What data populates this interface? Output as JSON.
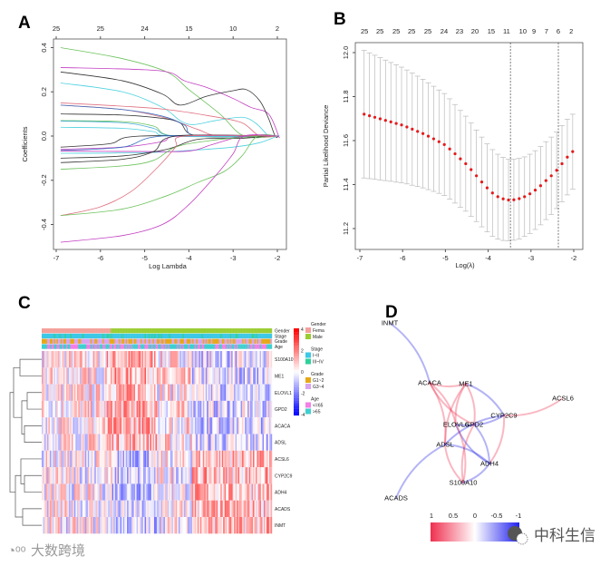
{
  "panel_letters": {
    "a": "A",
    "b": "B",
    "c": "C",
    "d": "D"
  },
  "chart_data": [
    {
      "panel": "A",
      "type": "line",
      "xlabel": "Log Lambda",
      "ylabel": "Coefficients",
      "xlim": [
        -7,
        -2
      ],
      "ylim": [
        -0.5,
        0.42
      ],
      "xticks": [
        "-7",
        "-6",
        "-5",
        "-4",
        "-3",
        "-2"
      ],
      "xtick_values": [
        -7,
        -6,
        -5,
        -4,
        -3,
        -2
      ],
      "yticks": [
        "-0.4",
        "-0.2",
        "0.0",
        "0.2",
        "0.4"
      ],
      "ytick_values": [
        -0.4,
        -0.2,
        0,
        0.2,
        0.4
      ],
      "top_axis": {
        "labels": [
          "25",
          "25",
          "24",
          "15",
          "10",
          "2"
        ],
        "at": [
          -7,
          -6,
          -5,
          -4,
          -3,
          -2
        ]
      },
      "series": [
        {
          "color": "#6cc35c",
          "points": [
            [
              -6.9,
              0.4
            ],
            [
              -5.5,
              0.35
            ],
            [
              -4.5,
              0.29
            ],
            [
              -4.0,
              0.21
            ],
            [
              -3.3,
              0.1
            ],
            [
              -2.75,
              0
            ]
          ]
        },
        {
          "color": "#c23dc2",
          "points": [
            [
              -6.9,
              0.31
            ],
            [
              -5,
              0.3
            ],
            [
              -4.4,
              0.285
            ],
            [
              -4.1,
              0.25
            ],
            [
              -3.6,
              0.22
            ],
            [
              -3,
              0.17
            ],
            [
              -2.6,
              0.13
            ],
            [
              -2.2,
              0.1
            ],
            [
              -1.97,
              0
            ]
          ]
        },
        {
          "color": "#333333",
          "points": [
            [
              -6.9,
              0.29
            ],
            [
              -5.5,
              0.25
            ],
            [
              -4.6,
              0.19
            ],
            [
              -4.2,
              0.14
            ],
            [
              -3.6,
              0.18
            ],
            [
              -3.0,
              0.205
            ],
            [
              -2.7,
              0.21
            ],
            [
              -2.4,
              0.16
            ],
            [
              -2.2,
              0.08
            ],
            [
              -2.05,
              0
            ]
          ]
        },
        {
          "color": "#4fd1df",
          "points": [
            [
              -6.9,
              0.24
            ],
            [
              -5.5,
              0.2
            ],
            [
              -4.6,
              0.13
            ],
            [
              -4.2,
              0.07
            ],
            [
              -3.9,
              0.052
            ],
            [
              -3.4,
              0.07
            ],
            [
              -2.8,
              0.085
            ],
            [
              -2.5,
              0.06
            ],
            [
              -2.25,
              0.01
            ],
            [
              -2.2,
              0
            ]
          ]
        },
        {
          "color": "#e07080",
          "points": [
            [
              -6.9,
              0.15
            ],
            [
              -5.5,
              0.135
            ],
            [
              -4.5,
              0.12
            ],
            [
              -3.5,
              0.09
            ],
            [
              -2.8,
              0.06
            ],
            [
              -2.4,
              0
            ]
          ]
        },
        {
          "color": "#e07080",
          "points": [
            [
              -6.9,
              0.14
            ],
            [
              -5.5,
              0.12
            ],
            [
              -4.5,
              0.08
            ],
            [
              -3.8,
              0.03
            ],
            [
              -3.3,
              0
            ]
          ]
        },
        {
          "color": "#333333",
          "points": [
            [
              -6.9,
              0.1
            ],
            [
              -5.5,
              0.095
            ],
            [
              -4.6,
              0.08
            ],
            [
              -4.2,
              0.06
            ],
            [
              -3.8,
              0
            ]
          ]
        },
        {
          "color": "#3a70c0",
          "points": [
            [
              -6.9,
              0.14
            ],
            [
              -5.5,
              0.12
            ],
            [
              -4.6,
              0.09
            ],
            [
              -4.1,
              0.05
            ],
            [
              -3.8,
              0
            ]
          ]
        },
        {
          "color": "#6cc35c",
          "points": [
            [
              -6.9,
              0.07
            ],
            [
              -5.5,
              0.065
            ],
            [
              -4.8,
              0.045
            ],
            [
              -4.3,
              0
            ]
          ]
        },
        {
          "color": "#4fb0df",
          "points": [
            [
              -6.9,
              0.068
            ],
            [
              -5.5,
              0.06
            ],
            [
              -4.8,
              0.035
            ],
            [
              -4.3,
              0
            ]
          ]
        },
        {
          "color": "#4fd1df",
          "points": [
            [
              -6.9,
              0.04
            ],
            [
              -5.5,
              0.035
            ],
            [
              -4.8,
              0.02
            ],
            [
              -4.4,
              0
            ]
          ]
        },
        {
          "color": "#333333",
          "points": [
            [
              -6.9,
              -0.05
            ],
            [
              -5.8,
              -0.035
            ],
            [
              -5.1,
              0
            ]
          ]
        },
        {
          "color": "#c23dc2",
          "points": [
            [
              -6.9,
              -0.06
            ],
            [
              -5.5,
              -0.05
            ],
            [
              -4.6,
              -0.025
            ],
            [
              -4.2,
              0
            ]
          ]
        },
        {
          "color": "#3a70c0",
          "points": [
            [
              -6.9,
              -0.065
            ],
            [
              -5.5,
              -0.05
            ],
            [
              -4.6,
              0
            ]
          ]
        },
        {
          "color": "#4fd1df",
          "points": [
            [
              -6.9,
              -0.078
            ],
            [
              -5.0,
              -0.075
            ],
            [
              -4.0,
              -0.065
            ],
            [
              -3,
              -0.05
            ],
            [
              -2.4,
              -0.03
            ],
            [
              -2.0,
              0
            ]
          ]
        },
        {
          "color": "#c23dc2",
          "points": [
            [
              -6.9,
              -0.068
            ],
            [
              -5,
              -0.07
            ],
            [
              -4.0,
              -0.068
            ],
            [
              -3.5,
              -0.04
            ],
            [
              -3.0,
              -0.01
            ],
            [
              -2.7,
              0
            ]
          ]
        },
        {
          "color": "#333333",
          "points": [
            [
              -6.9,
              -0.1
            ],
            [
              -5.5,
              -0.09
            ],
            [
              -4.5,
              -0.06
            ],
            [
              -3.8,
              -0.015
            ],
            [
              -2.8,
              -0.01
            ],
            [
              -2.2,
              0
            ]
          ]
        },
        {
          "color": "#333333",
          "points": [
            [
              -6.9,
              -0.12
            ],
            [
              -5.5,
              -0.105
            ],
            [
              -4.8,
              -0.07
            ],
            [
              -4.3,
              0
            ]
          ]
        },
        {
          "color": "#6cc35c",
          "points": [
            [
              -6.9,
              -0.15
            ],
            [
              -5.5,
              -0.135
            ],
            [
              -4.8,
              -0.11
            ],
            [
              -4.3,
              -0.05
            ],
            [
              -3.5,
              -0.02
            ],
            [
              -2.4,
              0
            ]
          ]
        },
        {
          "color": "#e07080",
          "points": [
            [
              -6.9,
              -0.36
            ],
            [
              -6,
              -0.32
            ],
            [
              -5.3,
              -0.25
            ],
            [
              -4.7,
              -0.14
            ],
            [
              -4.3,
              -0.05
            ],
            [
              -4.1,
              0
            ]
          ]
        },
        {
          "color": "#6cc35c",
          "points": [
            [
              -6.9,
              -0.36
            ],
            [
              -5.5,
              -0.33
            ],
            [
              -4.5,
              -0.27
            ],
            [
              -3.8,
              -0.21
            ],
            [
              -3.2,
              -0.16
            ],
            [
              -2.8,
              -0.09
            ],
            [
              -2.45,
              0
            ]
          ]
        },
        {
          "color": "#c23dc2",
          "points": [
            [
              -6.9,
              -0.48
            ],
            [
              -5.5,
              -0.45
            ],
            [
              -4.6,
              -0.4
            ],
            [
              -4.0,
              -0.31
            ],
            [
              -3.4,
              -0.18
            ],
            [
              -3.0,
              -0.08
            ],
            [
              -2.75,
              0
            ]
          ]
        }
      ]
    },
    {
      "panel": "B",
      "type": "scatter",
      "xlabel": "Log(λ)",
      "ylabel": "Partial Likelihood Deviance",
      "xlim": [
        -7,
        -2
      ],
      "ylim": [
        11.15,
        12.05
      ],
      "xticks": [
        "-7",
        "-6",
        "-5",
        "-4",
        "-3",
        "-2"
      ],
      "xtick_values": [
        -7,
        -6,
        -5,
        -4,
        -3,
        -2
      ],
      "yticks": [
        "11.2",
        "11.4",
        "11.6",
        "11.8",
        "12.0"
      ],
      "ytick_values": [
        11.2,
        11.4,
        11.6,
        11.8,
        12.0
      ],
      "top_axis": {
        "labels": [
          "25",
          "25",
          "25",
          "25",
          "25",
          "24",
          "23",
          "20",
          "15",
          "11",
          "10",
          "9",
          "7",
          "6",
          "2"
        ],
        "at": [
          -6.89,
          -6.53,
          -6.15,
          -5.79,
          -5.41,
          -5.03,
          -4.67,
          -4.31,
          -3.93,
          -3.57,
          -3.19,
          -2.93,
          -2.64,
          -2.36,
          -2.06
        ]
      },
      "vlines": [
        -3.48,
        -2.36
      ],
      "point_color": "#e41a1c",
      "errorbar_color": "#bbbbbb",
      "x": [
        -6.9,
        -6.775,
        -6.65,
        -6.525,
        -6.4,
        -6.275,
        -6.15,
        -6.025,
        -5.9,
        -5.775,
        -5.65,
        -5.525,
        -5.4,
        -5.275,
        -5.15,
        -5.025,
        -4.9,
        -4.775,
        -4.65,
        -4.525,
        -4.4,
        -4.275,
        -4.15,
        -4.025,
        -3.9,
        -3.775,
        -3.65,
        -3.525,
        -3.4,
        -3.275,
        -3.15,
        -3.025,
        -2.9,
        -2.775,
        -2.65,
        -2.525,
        -2.4,
        -2.275,
        -2.15,
        -2.025
      ],
      "mean": [
        11.72,
        11.713,
        11.706,
        11.699,
        11.692,
        11.685,
        11.678,
        11.671,
        11.662,
        11.652,
        11.642,
        11.632,
        11.62,
        11.608,
        11.595,
        11.582,
        11.562,
        11.54,
        11.517,
        11.495,
        11.468,
        11.44,
        11.412,
        11.385,
        11.362,
        11.345,
        11.335,
        11.33,
        11.331,
        11.336,
        11.345,
        11.358,
        11.375,
        11.395,
        11.418,
        11.44,
        11.465,
        11.495,
        11.525,
        11.55
      ],
      "se": [
        0.29,
        0.286,
        0.282,
        0.278,
        0.274,
        0.27,
        0.267,
        0.263,
        0.259,
        0.255,
        0.251,
        0.247,
        0.243,
        0.239,
        0.235,
        0.232,
        0.228,
        0.224,
        0.22,
        0.216,
        0.212,
        0.208,
        0.204,
        0.2,
        0.197,
        0.193,
        0.189,
        0.185,
        0.184,
        0.183,
        0.181,
        0.18,
        0.179,
        0.178,
        0.177,
        0.176,
        0.174,
        0.173,
        0.172,
        0.17
      ]
    },
    {
      "panel": "C",
      "type": "heatmap",
      "genes": [
        "S100A10",
        "ME1",
        "ELOVL1",
        "GPD2",
        "ACACA",
        "ADSL",
        "ACSL6",
        "CYP2C9",
        "ADH4",
        "ACADS",
        "INMT"
      ],
      "annotation_tracks": [
        "Gender",
        "Stage",
        "Grade",
        "Age"
      ],
      "color_scale": {
        "ticks": [
          "4",
          "2",
          "0",
          "-2",
          "-4"
        ],
        "low": "#0000ff",
        "mid": "#ffffff",
        "high": "#ff0000"
      },
      "legend": [
        {
          "title": "Gender",
          "items": [
            {
              "label": "Fema",
              "color": "#f4a09a"
            },
            {
              "label": "Male",
              "color": "#9acd32"
            }
          ]
        },
        {
          "title": "Stage",
          "items": [
            {
              "label": "I~II",
              "color": "#3cc8e6"
            },
            {
              "label": "III~IV",
              "color": "#2ed19a"
            }
          ]
        },
        {
          "title": "Grade",
          "items": [
            {
              "label": "G1~2",
              "color": "#e6a817"
            },
            {
              "label": "G3~4",
              "color": "#d9a3ef"
            }
          ]
        },
        {
          "title": "Age",
          "items": [
            {
              "label": "<=65",
              "color": "#f37fe6"
            },
            {
              "label": ">65",
              "color": "#3fcfcf"
            }
          ]
        }
      ]
    },
    {
      "panel": "D",
      "type": "network",
      "nodes": [
        "INMT",
        "ACACA",
        "ME1",
        "ACSL6",
        "CYP2C9",
        "ELOVL6",
        "GPD2",
        "ADSL",
        "ADH4",
        "S100A10",
        "ACADS"
      ],
      "edges": [
        [
          "INMT",
          "ACACA",
          -0.5
        ],
        [
          "ACACA",
          "ME1",
          0.5
        ],
        [
          "ME1",
          "CYP2C9",
          -0.5
        ],
        [
          "CYP2C9",
          "ACSL6",
          0.5
        ],
        [
          "ACACA",
          "ELOVL6",
          0.5
        ],
        [
          "ACACA",
          "GPD2",
          0.5
        ],
        [
          "ACACA",
          "ADSL",
          0.5
        ],
        [
          "ME1",
          "ELOVL6",
          0.5
        ],
        [
          "ME1",
          "GPD2",
          0.5
        ],
        [
          "ME1",
          "ADSL",
          0.5
        ],
        [
          "CYP2C9",
          "ELOVL6",
          -0.6
        ],
        [
          "CYP2C9",
          "ADSL",
          -0.6
        ],
        [
          "CYP2C9",
          "ADH4",
          0.5
        ],
        [
          "ELOVL6",
          "ADH4",
          -0.6
        ],
        [
          "GPD2",
          "ADH4",
          -0.5
        ],
        [
          "ADSL",
          "S100A10",
          0.5
        ],
        [
          "ELOVL6",
          "S100A10",
          0.5
        ],
        [
          "GPD2",
          "S100A10",
          0.5
        ],
        [
          "ADH4",
          "S100A10",
          -0.5
        ],
        [
          "ADSL",
          "ACADS",
          -0.5
        ],
        [
          "ADSL",
          "ADH4",
          -0.5
        ]
      ],
      "colorbar": {
        "labels": [
          "1",
          "0.5",
          "0",
          "-0.5",
          "-1"
        ],
        "pos_color": "#f0304f",
        "neg_color": "#2020ee"
      }
    }
  ],
  "watermarks": {
    "left": "大数跨境",
    "right": "中科生信"
  }
}
